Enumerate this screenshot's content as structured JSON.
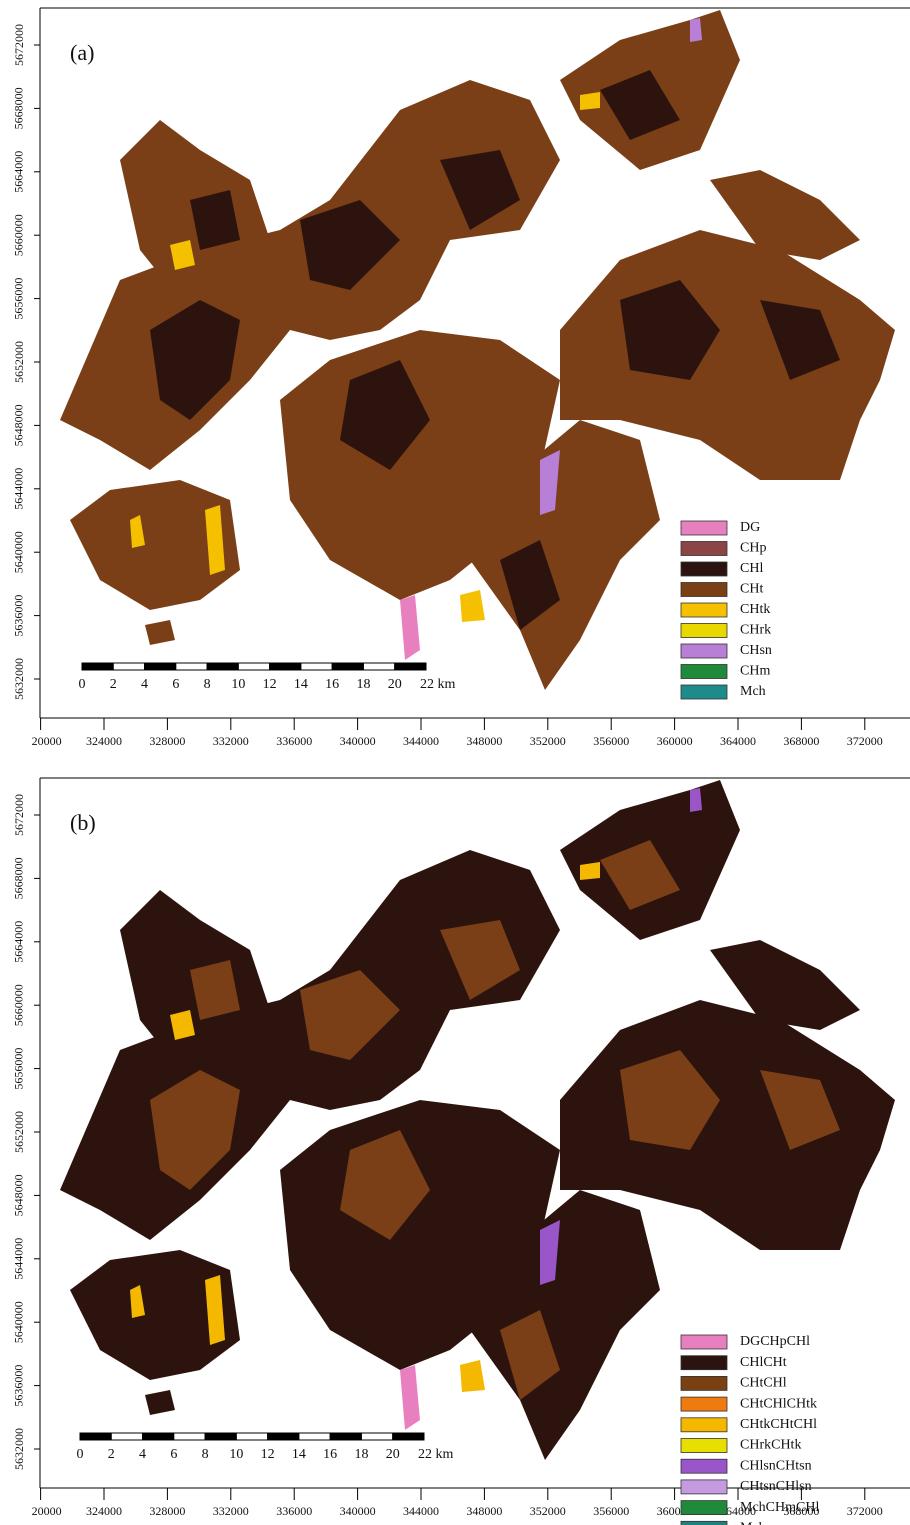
{
  "panels": [
    {
      "label": "(a)",
      "x_ticks": [
        {
          "value": 320000,
          "label": "20000"
        },
        324000,
        328000,
        332000,
        336000,
        340000,
        344000,
        348000,
        352000,
        356000,
        360000,
        364000,
        368000,
        372000
      ],
      "y_ticks": [
        5632000,
        5636000,
        5640000,
        5644000,
        5648000,
        5652000,
        5656000,
        5660000,
        5664000,
        5668000,
        5672000
      ],
      "scale_labels": [
        "0",
        "2",
        "4",
        "6",
        "8",
        "10",
        "12",
        "14",
        "16",
        "18",
        "20",
        "22 km"
      ],
      "legend": [
        {
          "name": "DG",
          "color": "#e880c0"
        },
        {
          "name": "CHp",
          "color": "#8b4545"
        },
        {
          "name": "CHl",
          "color": "#2b1410"
        },
        {
          "name": "CHt",
          "color": "#7b3f14"
        },
        {
          "name": "CHtk",
          "color": "#f5c000"
        },
        {
          "name": "CHrk",
          "color": "#e8d800"
        },
        {
          "name": "CHsn",
          "color": "#b77fd6"
        },
        {
          "name": "CHm",
          "color": "#1e8a3a"
        },
        {
          "name": "Mch",
          "color": "#1f8a8a"
        }
      ]
    },
    {
      "label": "(b)",
      "x_ticks": [
        {
          "value": 320000,
          "label": "20000"
        },
        324000,
        328000,
        332000,
        336000,
        340000,
        344000,
        348000,
        352000,
        356000,
        360000,
        364000,
        368000,
        372000
      ],
      "y_ticks": [
        5632000,
        5636000,
        5640000,
        5644000,
        5648000,
        5652000,
        5656000,
        5660000,
        5664000,
        5668000,
        5672000
      ],
      "scale_labels": [
        "0",
        "2",
        "4",
        "6",
        "8",
        "10",
        "12",
        "14",
        "16",
        "18",
        "20",
        "22 km"
      ],
      "legend": [
        {
          "name": "DGCHpCHl",
          "color": "#e880c0"
        },
        {
          "name": "CHlCHt",
          "color": "#2b1410"
        },
        {
          "name": "CHtCHl",
          "color": "#7b3f14"
        },
        {
          "name": "CHtCHlCHtk",
          "color": "#ee7a10"
        },
        {
          "name": "CHtkCHtCHl",
          "color": "#f5b800"
        },
        {
          "name": "CHrkCHtk",
          "color": "#e8de00"
        },
        {
          "name": "CHlsnCHtsn",
          "color": "#9a55c8"
        },
        {
          "name": "CHtsnCHlsn",
          "color": "#c49ae0"
        },
        {
          "name": "MchCHmCHl",
          "color": "#1e8a3a"
        },
        {
          "name": "Mch",
          "color": "#1f8080"
        }
      ]
    }
  ]
}
